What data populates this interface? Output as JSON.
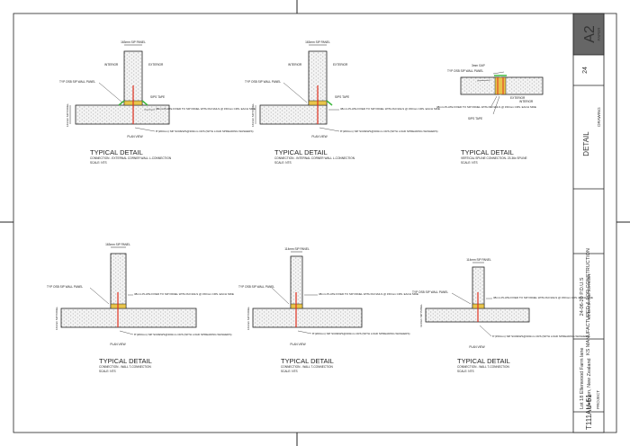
{
  "details": [
    {
      "title": "TYPICAL DETAIL",
      "subtitle": "CONNECTION - EXTERNAL CORNER WALL L-CONNECTION",
      "scale": "SCALE: NTS",
      "labels": {
        "panel_width": "163mm SIP PANEL",
        "interior": "INTERIOR",
        "exterior": "EXTERIOR",
        "wall_panel": "TYP OSB SIP WALL PANEL",
        "tape": "SIPS TAPE",
        "plate": "38mm PLATE FIXED TO SIP PANEL WITH 8d NAILS @ 150mm CRS. EACH SIDE",
        "screws": "8\"(200mm) SIP SCREWS@300mm CRS (WITH LOAD SPREADING WASHERS)",
        "view": "PLAN VIEW",
        "side_panel": "163mm SIP PANEL"
      }
    },
    {
      "title": "TYPICAL DETAIL",
      "subtitle": "CONNECTION - INTERNAL CORNER WALL L-CONNECTION",
      "scale": "SCALE: NTS",
      "labels": {
        "panel_width": "163mm SIP PANEL",
        "interior": "INTERIOR",
        "exterior": "EXTERIOR",
        "wall_panel": "TYP OSB SIP WALL PANEL",
        "tape": "SIPS TAPE",
        "plate": "38mm PLATE FIXED TO SIP PANEL WITH 8d NAILS @ 150mm CRS. EACH SIDE",
        "screws": "8\"(200mm) SIP SCREWS@300mm CRS (WITH LOAD SPREADING WASHERS)",
        "view": "PLAN VIEW",
        "side_panel": "163mm SIP PANEL"
      }
    },
    {
      "title": "TYPICAL DETAIL",
      "subtitle": "VERTICAL SPLINE CONNECTION- 23.36x SPLINE",
      "scale": "SCALE: NTS",
      "labels": {
        "gap": "3mm GAP",
        "wall_panel": "TYP OSB SIP WALL PANEL",
        "exterior": "EXTERIOR",
        "interior": "INTERIOR",
        "plate": "38mm PLATE FIXED TO SIP PANEL WITH 8d NAILS @ 150mm CRS. EACH SIDE",
        "tape": "SIPS TAPE"
      }
    },
    {
      "title": "TYPICAL DETAIL",
      "subtitle": "CONNECTION - WALL T-CONNECTION",
      "scale": "SCALE: NTS",
      "labels": {
        "panel_width": "163mm SIP PANEL",
        "wall_panel": "TYP OSB SIP WALL PANEL",
        "plate": "38mm PLATE FIXED TO SIP PANEL WITH 8d NAILS @ 150mm CRS. EACH SIDE",
        "screws": "8\"(200mm) SIP SCREWS@300mm CRS (WITH LOAD SPREADING WASHERS)",
        "view": "PLAN VIEW",
        "side_panel": "163mm SIP PANEL"
      }
    },
    {
      "title": "TYPICAL DETAIL",
      "subtitle": "CONNECTION - WALL T-CONNECTION",
      "scale": "SCALE: NTS",
      "labels": {
        "panel_width": "114mm SIP PANEL",
        "wall_panel": "TYP OSB SIP WALL PANEL",
        "plate": "38mm PLATE FIXED TO SIP PANEL WITH 8d NAILS @ 150mm CRS. EACH SIDE",
        "screws": "8\"(200mm) SIP SCREWS@300mm CRS (WITH LOAD SPREADING WASHERS)",
        "view": "PLAN VIEW",
        "side_panel": "163mm SIP PANEL"
      }
    },
    {
      "title": "TYPICAL DETAIL",
      "subtitle": "CONNECTION - WALL T-CONNECTION",
      "scale": "SCALE: NTS",
      "labels": {
        "panel_width": "114mm SIP PANEL",
        "wall_panel": "TYP OSB SIP WALL PANEL",
        "plate": "38mm PLATE FIXED TO SIP PANEL WITH 8d NAILS @ 150mm CRS. EACH SIDE",
        "screws": "6\"(150mm) SIP SCREWS@300mm CRS (WITH LOAD SPREADING WASHERS)",
        "view": "PLAN VIEW",
        "side_panel": "114mm SIP PANEL"
      }
    }
  ],
  "title_block": {
    "sheet_size": "A2",
    "paper_label": "PAPER",
    "drawing_no": "24",
    "drawing_label": "DRAWING",
    "drawing_title": "DETAIL",
    "status": "KS MANUFACTURED & FOR CONSTRUCTION",
    "date_version": "24-06-20 P.D.U.S",
    "date_label": "KS DATE AND VERSION",
    "project_line1": "Lot 18 Ellenwood Farm lane",
    "project_line2": "Methven, New Zealand",
    "project_label": "PROJECT",
    "project_code": "T111AU-51"
  },
  "colors": {
    "line": "#222222",
    "insulation": "#bdbdbd",
    "plate": "#e8c44a",
    "screw": "#e0301e",
    "tape": "#3fb83f",
    "status_text": "#e0301e"
  }
}
